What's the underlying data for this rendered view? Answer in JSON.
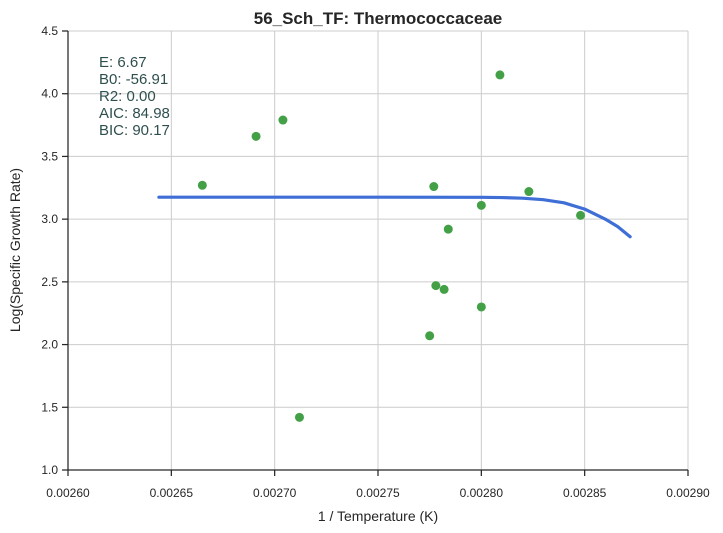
{
  "chart_data": {
    "type": "scatter",
    "title": "56_Sch_TF: Thermococcaceae",
    "xlabel": "1 / Temperature (K)",
    "ylabel": "Log(Specific Growth Rate)",
    "xlim": [
      0.0026,
      0.0029
    ],
    "ylim": [
      1.0,
      4.5
    ],
    "xticks": [
      0.0026,
      0.00265,
      0.0027,
      0.00275,
      0.0028,
      0.00285,
      0.0029
    ],
    "xtick_labels": [
      "0.00260",
      "0.00265",
      "0.00270",
      "0.00275",
      "0.00280",
      "0.00285",
      "0.00290"
    ],
    "yticks": [
      1.0,
      1.5,
      2.0,
      2.5,
      3.0,
      3.5,
      4.0,
      4.5
    ],
    "ytick_labels": [
      "1.0",
      "1.5",
      "2.0",
      "2.5",
      "3.0",
      "3.5",
      "4.0",
      "4.5"
    ],
    "grid": true,
    "annotations": [
      "E:  6.67",
      "B0:  -56.91",
      "R2:  0.00",
      "AIC: 84.98",
      "BIC: 90.17"
    ],
    "series": [
      {
        "type": "scatter",
        "color": "#43a047",
        "points": [
          [
            0.002665,
            3.27
          ],
          [
            0.002691,
            3.66
          ],
          [
            0.002704,
            3.79
          ],
          [
            0.002712,
            1.42
          ],
          [
            0.002775,
            2.07
          ],
          [
            0.002777,
            3.26
          ],
          [
            0.002778,
            2.47
          ],
          [
            0.002782,
            2.44
          ],
          [
            0.002784,
            2.92
          ],
          [
            0.0028,
            3.11
          ],
          [
            0.0028,
            2.3
          ],
          [
            0.002809,
            4.15
          ],
          [
            0.002823,
            3.22
          ],
          [
            0.002848,
            3.03
          ]
        ]
      },
      {
        "type": "line",
        "color": "#3f6fd6",
        "points": [
          [
            0.002644,
            3.175
          ],
          [
            0.0027,
            3.175
          ],
          [
            0.00275,
            3.175
          ],
          [
            0.0028,
            3.174
          ],
          [
            0.00281,
            3.172
          ],
          [
            0.00282,
            3.167
          ],
          [
            0.00283,
            3.155
          ],
          [
            0.00284,
            3.13
          ],
          [
            0.00285,
            3.08
          ],
          [
            0.00286,
            3.0
          ],
          [
            0.002866,
            2.94
          ],
          [
            0.002872,
            2.86
          ]
        ]
      }
    ]
  }
}
